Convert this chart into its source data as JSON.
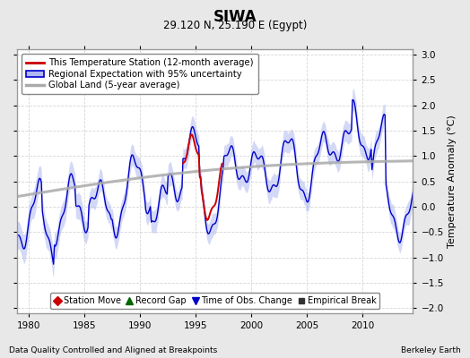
{
  "title": "SIWA",
  "subtitle": "29.120 N, 25.190 E (Egypt)",
  "ylabel": "Temperature Anomaly (°C)",
  "xlabel_left": "Data Quality Controlled and Aligned at Breakpoints",
  "xlabel_right": "Berkeley Earth",
  "ylim": [
    -2.1,
    3.1
  ],
  "xlim": [
    1979.0,
    2014.5
  ],
  "yticks": [
    -2,
    -1.5,
    -1,
    -0.5,
    0,
    0.5,
    1,
    1.5,
    2,
    2.5,
    3
  ],
  "xticks": [
    1980,
    1985,
    1990,
    1995,
    2000,
    2005,
    2010
  ],
  "bg_color": "#e8e8e8",
  "plot_bg_color": "#ffffff",
  "grid_color": "#cccccc",
  "blue_line_color": "#0000cc",
  "blue_fill_color": "#b0b8f0",
  "red_line_color": "#cc0000",
  "gray_line_color": "#aaaaaa",
  "legend1_items": [
    "This Temperature Station (12-month average)",
    "Regional Expectation with 95% uncertainty",
    "Global Land (5-year average)"
  ],
  "legend2_items": [
    "Station Move",
    "Record Gap",
    "Time of Obs. Change",
    "Empirical Break"
  ]
}
